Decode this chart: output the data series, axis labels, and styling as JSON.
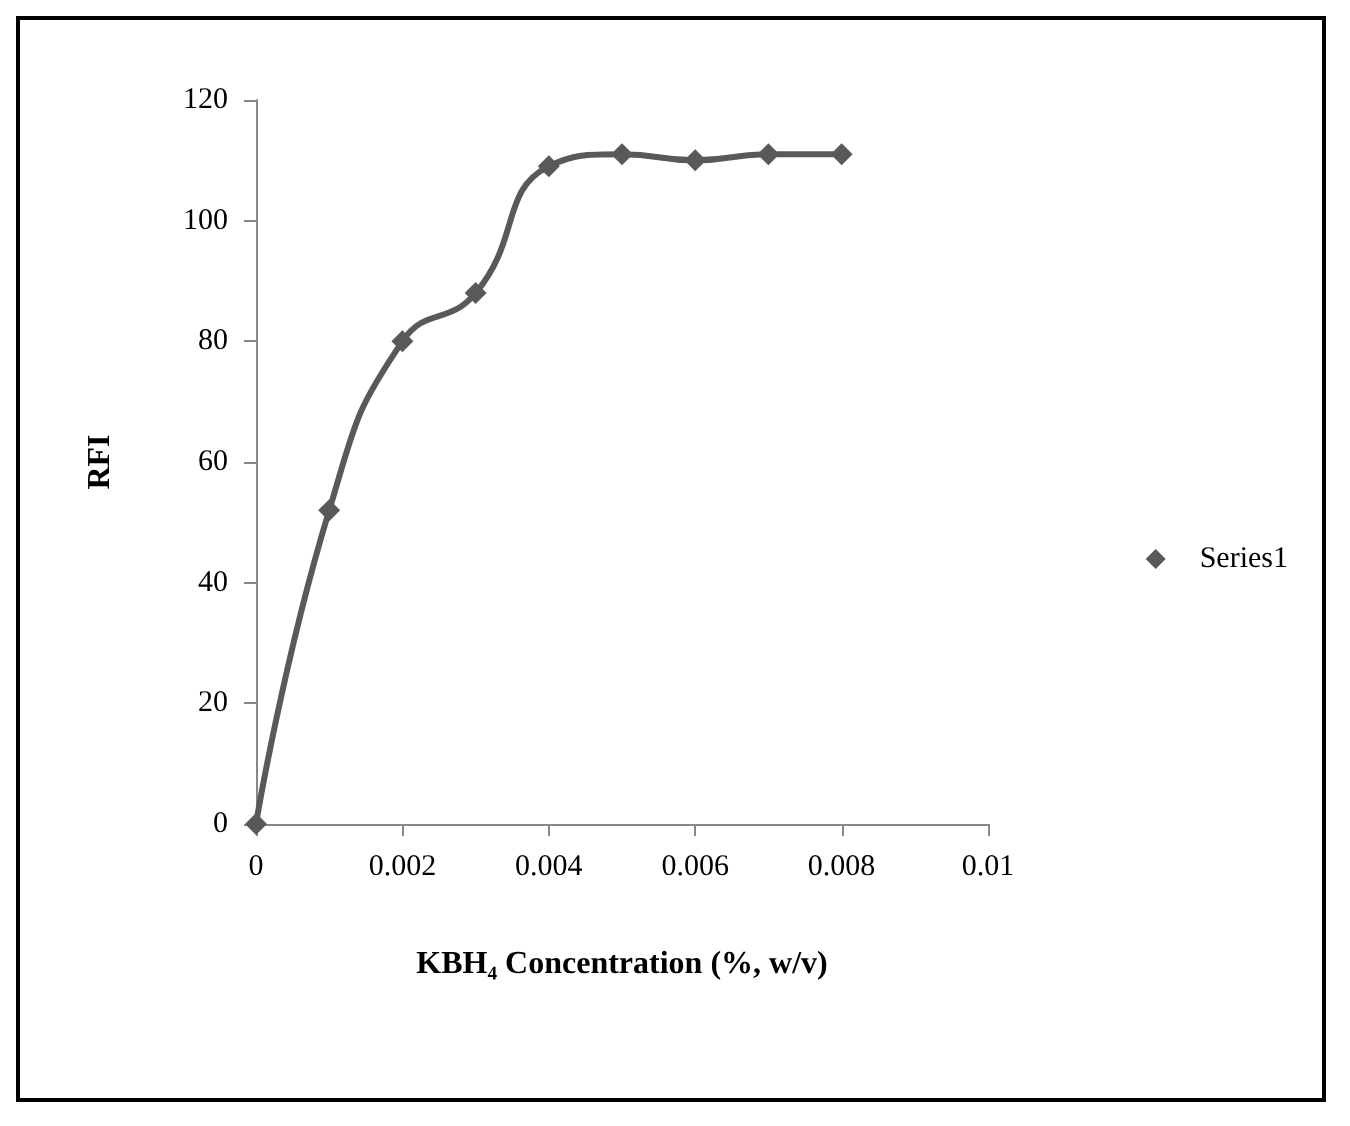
{
  "chart_data": {
    "type": "line",
    "xlabel": "KBH₄ Concentration (%, w/v)",
    "ylabel": "RFI",
    "x": [
      0,
      0.001,
      0.002,
      0.003,
      0.004,
      0.005,
      0.006,
      0.007,
      0.008
    ],
    "series": [
      {
        "name": "Series1",
        "color": "#595959",
        "values": [
          0,
          52,
          80,
          88,
          109,
          111,
          110,
          111,
          111
        ]
      }
    ],
    "xlim": [
      0,
      0.01
    ],
    "xticks": [
      0,
      0.002,
      0.004,
      0.006,
      0.008,
      0.01
    ],
    "ylim": [
      0,
      120
    ],
    "yticks": [
      0,
      20,
      40,
      60,
      80,
      100,
      120
    ],
    "grid": false,
    "legend": "right",
    "marker": "diamond",
    "line_style": "solid"
  }
}
